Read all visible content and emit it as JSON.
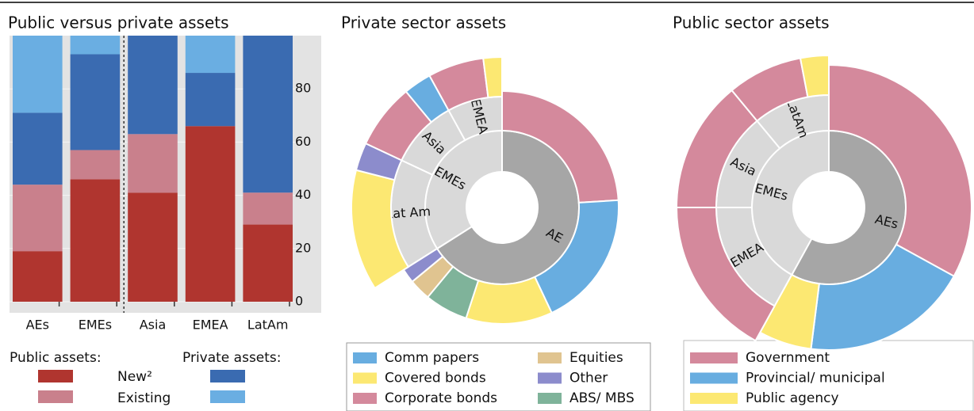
{
  "chart_data": [
    {
      "type": "bar",
      "stacked": true,
      "title": "Public versus private assets",
      "categories": [
        "AEs",
        "EMEs",
        "Asia",
        "EMEA",
        "LatAm"
      ],
      "series": [
        {
          "name": "New²",
          "group": "Public assets:",
          "color": "#b0352f",
          "values": [
            19,
            46,
            41,
            66,
            29
          ]
        },
        {
          "name": "Existing",
          "group": "Public assets:",
          "color": "#c9808c",
          "values": [
            25,
            11,
            22,
            0,
            12
          ]
        },
        {
          "name": "New²",
          "group": "Private assets:",
          "color": "#3a6bb1",
          "values": [
            27,
            36,
            37,
            20,
            59
          ]
        },
        {
          "name": "Existing",
          "group": "Private assets:",
          "color": "#6aaee2",
          "values": [
            29,
            7,
            0,
            14,
            0
          ]
        }
      ],
      "ylim": [
        0,
        100
      ],
      "yticks": [
        0,
        20,
        40,
        60,
        80
      ]
    },
    {
      "type": "sunburst",
      "title": "Private sector assets",
      "inner": {
        "categories": [
          "AE",
          "EMEs"
        ],
        "colors": [
          "#a6a6a6",
          "#d9d9d9"
        ],
        "values": [
          66,
          34
        ]
      },
      "middle": {
        "categories": [
          "Lat Am",
          "Asia",
          "EMEA"
        ],
        "color": "#d9d9d9",
        "values": [
          16,
          10,
          8
        ]
      },
      "series": [
        {
          "name": "Corporate bonds",
          "color": "#d4899c",
          "values": [
            24,
            null,
            7,
            6
          ]
        },
        {
          "name": "Comm papers",
          "color": "#68ade0",
          "values": [
            19,
            null,
            3,
            null
          ]
        },
        {
          "name": "Covered bonds",
          "color": "#fce872",
          "values": [
            12,
            13,
            null,
            2
          ]
        },
        {
          "name": "ABS/ MBS",
          "color": "#7fb39a",
          "values": [
            6,
            null,
            null,
            null
          ]
        },
        {
          "name": "Equities",
          "color": "#e0c490",
          "values": [
            3,
            null,
            null,
            null
          ]
        },
        {
          "name": "Other",
          "color": "#8c8ccc",
          "values": [
            2,
            3,
            null,
            null
          ]
        }
      ]
    },
    {
      "type": "sunburst",
      "title": "Public sector assets",
      "inner": {
        "categories": [
          "AEs",
          "EMEs"
        ],
        "colors": [
          "#a6a6a6",
          "#d9d9d9"
        ],
        "values": [
          58,
          42
        ]
      },
      "middle": {
        "categories": [
          "EMEA",
          "Asia",
          "LatAm"
        ],
        "color": "#d9d9d9",
        "values": [
          17,
          14,
          11
        ]
      },
      "series": [
        {
          "name": "Government",
          "color": "#d4899c",
          "values": [
            33,
            17,
            14,
            8
          ]
        },
        {
          "name": "Provincial/ municipal",
          "color": "#68ade0",
          "values": [
            19,
            null,
            null,
            null
          ]
        },
        {
          "name": "Public agency",
          "color": "#fce872",
          "values": [
            6,
            null,
            null,
            3
          ]
        }
      ]
    }
  ]
}
